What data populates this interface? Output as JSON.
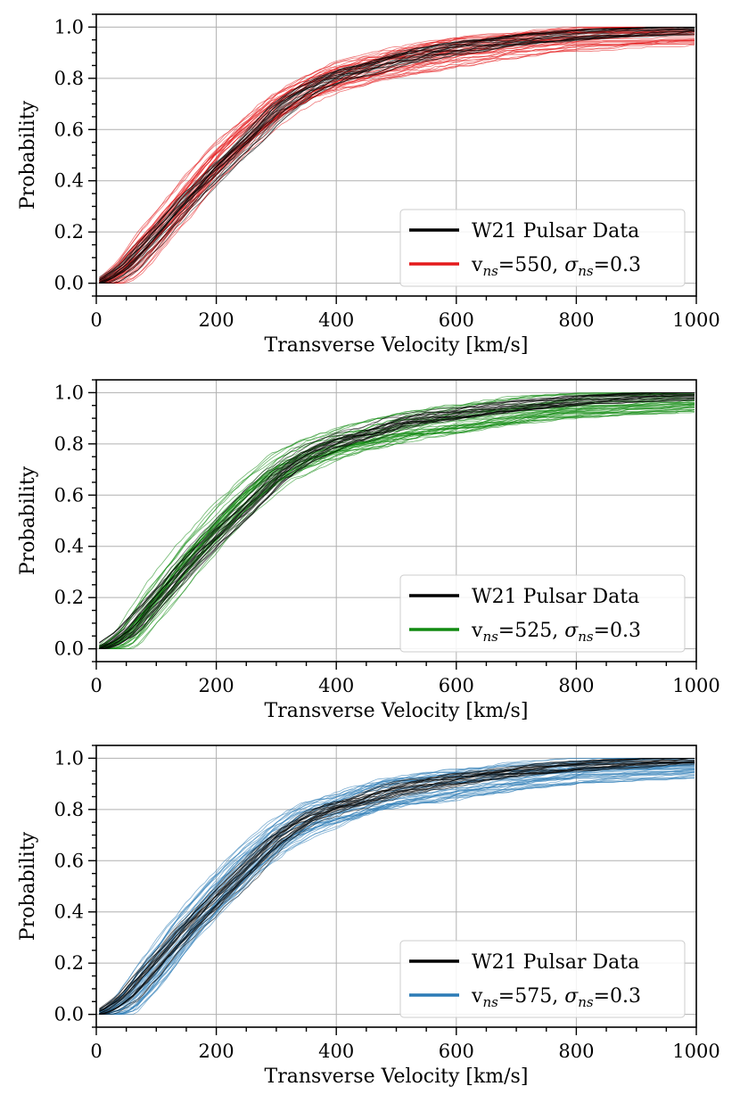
{
  "chart_data": [
    {
      "type": "line",
      "xlabel": "Transverse Velocity [km/s]",
      "ylabel": "Probability",
      "xlim": [
        0,
        1000
      ],
      "ylim": [
        -0.05,
        1.05
      ],
      "xticks": [
        0,
        200,
        400,
        600,
        800,
        1000
      ],
      "xtick_labels": [
        "0",
        "200",
        "400",
        "600",
        "800",
        "1000"
      ],
      "yticks": [
        0.0,
        0.2,
        0.4,
        0.6,
        0.8,
        1.0
      ],
      "ytick_labels": [
        "0.0",
        "0.2",
        "0.4",
        "0.6",
        "0.8",
        "1.0"
      ],
      "grid": true,
      "legend_position": "lower-right",
      "series": [
        {
          "name": "W21 Pulsar Data",
          "color": "#000000",
          "x": [
            0,
            20,
            50,
            100,
            150,
            200,
            250,
            300,
            350,
            400,
            450,
            500,
            600,
            700,
            800,
            900,
            1000
          ],
          "values": [
            0.0,
            0.02,
            0.07,
            0.2,
            0.33,
            0.45,
            0.56,
            0.68,
            0.76,
            0.81,
            0.84,
            0.88,
            0.92,
            0.95,
            0.97,
            0.98,
            0.99
          ]
        },
        {
          "name": "v_ns=550, σ_ns=0.3",
          "legend_parts": {
            "v": "v",
            "sub": "ns",
            "mid": "=550, ",
            "sigma": "σ",
            "sub2": "ns",
            "end": "=0.3"
          },
          "color": "#e41a1c",
          "x": [
            0,
            20,
            50,
            100,
            150,
            200,
            250,
            300,
            350,
            400,
            450,
            500,
            600,
            700,
            800,
            900,
            1000
          ],
          "values": [
            0.0,
            0.01,
            0.06,
            0.19,
            0.33,
            0.47,
            0.58,
            0.68,
            0.75,
            0.8,
            0.83,
            0.86,
            0.9,
            0.93,
            0.95,
            0.96,
            0.97
          ]
        }
      ],
      "ensemble_lines": 40
    },
    {
      "type": "line",
      "xlabel": "Transverse Velocity [km/s]",
      "ylabel": "Probability",
      "xlim": [
        0,
        1000
      ],
      "ylim": [
        -0.05,
        1.05
      ],
      "xticks": [
        0,
        200,
        400,
        600,
        800,
        1000
      ],
      "xtick_labels": [
        "0",
        "200",
        "400",
        "600",
        "800",
        "1000"
      ],
      "yticks": [
        0.0,
        0.2,
        0.4,
        0.6,
        0.8,
        1.0
      ],
      "ytick_labels": [
        "0.0",
        "0.2",
        "0.4",
        "0.6",
        "0.8",
        "1.0"
      ],
      "grid": true,
      "legend_position": "lower-right",
      "series": [
        {
          "name": "W21 Pulsar Data",
          "color": "#000000",
          "x": [
            0,
            20,
            50,
            100,
            150,
            200,
            250,
            300,
            350,
            400,
            450,
            500,
            600,
            700,
            800,
            900,
            1000
          ],
          "values": [
            0.0,
            0.02,
            0.07,
            0.2,
            0.33,
            0.45,
            0.56,
            0.68,
            0.76,
            0.81,
            0.84,
            0.88,
            0.92,
            0.95,
            0.97,
            0.98,
            0.99
          ]
        },
        {
          "name": "v_ns=525, σ_ns=0.3",
          "legend_parts": {
            "v": "v",
            "sub": "ns",
            "mid": "=525, ",
            "sigma": "σ",
            "sub2": "ns",
            "end": "=0.3"
          },
          "color": "#118a11",
          "x": [
            0,
            20,
            50,
            100,
            150,
            200,
            250,
            300,
            350,
            400,
            450,
            500,
            600,
            700,
            800,
            900,
            1000
          ],
          "values": [
            0.0,
            0.01,
            0.05,
            0.2,
            0.35,
            0.48,
            0.6,
            0.7,
            0.76,
            0.8,
            0.83,
            0.86,
            0.9,
            0.93,
            0.95,
            0.96,
            0.97
          ]
        }
      ],
      "ensemble_lines": 40
    },
    {
      "type": "line",
      "xlabel": "Transverse Velocity [km/s]",
      "ylabel": "Probability",
      "xlim": [
        0,
        1000
      ],
      "ylim": [
        -0.05,
        1.05
      ],
      "xticks": [
        0,
        200,
        400,
        600,
        800,
        1000
      ],
      "xtick_labels": [
        "0",
        "200",
        "400",
        "600",
        "800",
        "1000"
      ],
      "yticks": [
        0.0,
        0.2,
        0.4,
        0.6,
        0.8,
        1.0
      ],
      "ytick_labels": [
        "0.0",
        "0.2",
        "0.4",
        "0.6",
        "0.8",
        "1.0"
      ],
      "grid": true,
      "legend_position": "lower-right",
      "series": [
        {
          "name": "W21 Pulsar Data",
          "color": "#000000",
          "x": [
            0,
            20,
            50,
            100,
            150,
            200,
            250,
            300,
            350,
            400,
            450,
            500,
            600,
            700,
            800,
            900,
            1000
          ],
          "values": [
            0.0,
            0.02,
            0.07,
            0.2,
            0.33,
            0.45,
            0.56,
            0.68,
            0.76,
            0.81,
            0.84,
            0.88,
            0.92,
            0.95,
            0.97,
            0.98,
            0.99
          ]
        },
        {
          "name": "v_ns=575, σ_ns=0.3",
          "legend_parts": {
            "v": "v",
            "sub": "ns",
            "mid": "=575, ",
            "sigma": "σ",
            "sub2": "ns",
            "end": "=0.3"
          },
          "color": "#2c7bb6",
          "x": [
            0,
            20,
            50,
            100,
            150,
            200,
            250,
            300,
            350,
            400,
            450,
            500,
            600,
            700,
            800,
            900,
            1000
          ],
          "values": [
            0.0,
            0.01,
            0.05,
            0.19,
            0.34,
            0.47,
            0.59,
            0.69,
            0.76,
            0.8,
            0.84,
            0.87,
            0.9,
            0.93,
            0.95,
            0.96,
            0.97
          ]
        }
      ],
      "ensemble_lines": 40
    }
  ]
}
